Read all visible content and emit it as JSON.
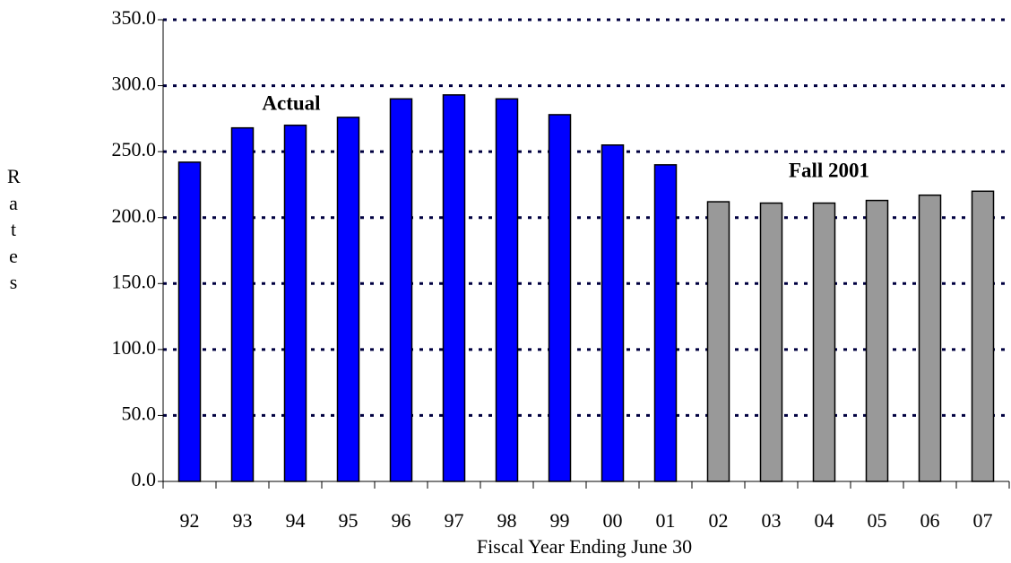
{
  "chart_data": {
    "type": "bar",
    "x_label": "Fiscal Year Ending June 30",
    "y_label": "Rates",
    "categories": [
      "92",
      "93",
      "94",
      "95",
      "96",
      "97",
      "98",
      "99",
      "00",
      "01",
      "02",
      "03",
      "04",
      "05",
      "06",
      "07"
    ],
    "series": [
      {
        "name": "Actual",
        "color": "#0000ff",
        "values": [
          242,
          268,
          270,
          276,
          290,
          293,
          290,
          278,
          255,
          240,
          null,
          null,
          null,
          null,
          null,
          null
        ]
      },
      {
        "name": "Fall 2001",
        "color": "#999999",
        "values": [
          null,
          null,
          null,
          null,
          null,
          null,
          null,
          null,
          null,
          null,
          212,
          211,
          211,
          213,
          217,
          220
        ]
      }
    ],
    "ylim": [
      0,
      350
    ],
    "yticks": [
      {
        "value": 0,
        "label": "0.0"
      },
      {
        "value": 50,
        "label": "50.0"
      },
      {
        "value": 100,
        "label": "100.0"
      },
      {
        "value": 150,
        "label": "150.0"
      },
      {
        "value": 200,
        "label": "200.0"
      },
      {
        "value": 250,
        "label": "250.0"
      },
      {
        "value": 300,
        "label": "300.0"
      },
      {
        "value": 350,
        "label": "350.0"
      }
    ],
    "grid": true
  }
}
